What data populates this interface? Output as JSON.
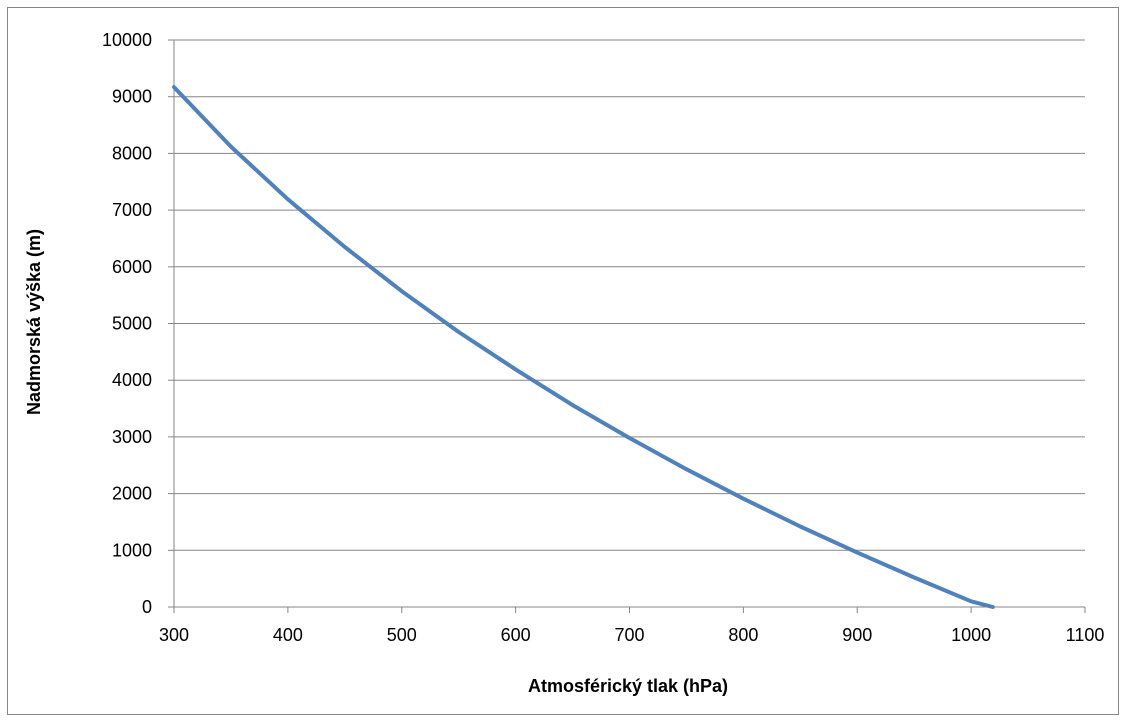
{
  "chart_data": {
    "type": "line",
    "title": "",
    "xlabel": "Atmosférický tlak  (hPa)",
    "ylabel": "Nadmorská výška (m)",
    "xlim": [
      300,
      1100
    ],
    "ylim": [
      0,
      10000
    ],
    "x_ticks": [
      "300",
      "400",
      "500",
      "600",
      "700",
      "800",
      "900",
      "1000",
      "1100"
    ],
    "y_ticks": [
      "0",
      "1000",
      "2000",
      "3000",
      "4000",
      "5000",
      "6000",
      "7000",
      "8000",
      "9000",
      "10000"
    ],
    "grid": "horizontal",
    "legend": "none",
    "line_color": "#4F81BD",
    "series": [
      {
        "x": [
          300,
          350,
          400,
          450,
          500,
          550,
          600,
          650,
          700,
          750,
          800,
          850,
          900,
          950,
          1000,
          1019
        ],
        "values": [
          9170,
          8120,
          7190,
          6350,
          5570,
          4850,
          4190,
          3560,
          2980,
          2430,
          1910,
          1420,
          960,
          520,
          100,
          0
        ]
      }
    ]
  }
}
